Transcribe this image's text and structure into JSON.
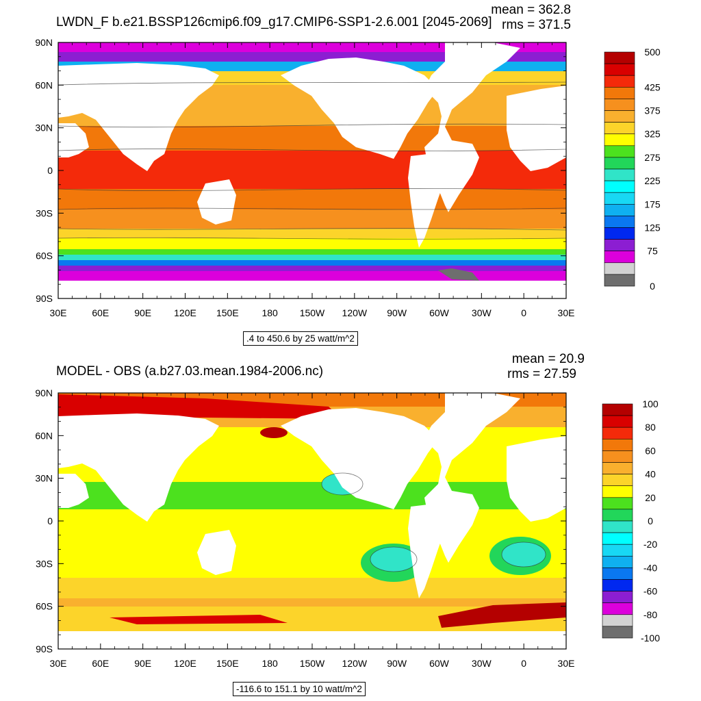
{
  "panels": [
    {
      "title": "LWDN_F b.e21.BSSP126cmip6.f09_g17.CMIP6-SSP1-2.6.001 [2045-2069]",
      "stats": {
        "mean": "mean = 362.8",
        "rms": "rms = 371.5"
      },
      "range_label": ".4 to 450.6 by 25 watt/m^2",
      "colorbar": {
        "colors": [
          "#B40000",
          "#D90000",
          "#F42A0A",
          "#F2780A",
          "#F6901E",
          "#F9B02E",
          "#FCD42A",
          "#FFFF00",
          "#4CE11E",
          "#22D65A",
          "#30E4C8",
          "#00FFFF",
          "#18D8F4",
          "#0FB0F0",
          "#0A78F0",
          "#0028F0",
          "#8C1ED2",
          "#DC00DC",
          "#D2D2D2",
          "#6E6E6E"
        ],
        "labels": [
          {
            "text": "500",
            "pos": 0
          },
          {
            "text": "425",
            "pos": 3
          },
          {
            "text": "375",
            "pos": 5
          },
          {
            "text": "325",
            "pos": 7
          },
          {
            "text": "275",
            "pos": 9
          },
          {
            "text": "225",
            "pos": 11
          },
          {
            "text": "175",
            "pos": 13
          },
          {
            "text": "125",
            "pos": 15
          },
          {
            "text": "75",
            "pos": 17
          },
          {
            "text": "0",
            "pos": 20
          }
        ]
      }
    },
    {
      "title": "MODEL - OBS (a.b27.03.mean.1984-2006.nc)",
      "stats": {
        "mean": "mean = 20.9",
        "rms": "rms = 27.59"
      },
      "range_label": "-116.6 to 151.1 by 10 watt/m^2",
      "colorbar": {
        "colors": [
          "#B40000",
          "#D90000",
          "#F42A0A",
          "#F2780A",
          "#F6901E",
          "#F9B02E",
          "#FCD42A",
          "#FFFF00",
          "#4CE11E",
          "#22D65A",
          "#30E4C8",
          "#00FFFF",
          "#18D8F4",
          "#0FB0F0",
          "#0A78F0",
          "#0028F0",
          "#8C1ED2",
          "#DC00DC",
          "#D2D2D2",
          "#6E6E6E"
        ],
        "labels": [
          {
            "text": "100",
            "pos": 0
          },
          {
            "text": "80",
            "pos": 2
          },
          {
            "text": "60",
            "pos": 4
          },
          {
            "text": "40",
            "pos": 6
          },
          {
            "text": "20",
            "pos": 8
          },
          {
            "text": "0",
            "pos": 10
          },
          {
            "text": "-20",
            "pos": 12
          },
          {
            "text": "-40",
            "pos": 14
          },
          {
            "text": "-60",
            "pos": 16
          },
          {
            "text": "-80",
            "pos": 18
          },
          {
            "text": "-100",
            "pos": 20
          }
        ]
      }
    }
  ],
  "axes": {
    "lat_labels": [
      "90N",
      "60N",
      "30N",
      "0",
      "30S",
      "60S",
      "90S"
    ],
    "lon_labels": [
      "30E",
      "60E",
      "90E",
      "120E",
      "150E",
      "180",
      "150W",
      "120W",
      "90W",
      "60W",
      "30W",
      "0",
      "30E"
    ]
  }
}
